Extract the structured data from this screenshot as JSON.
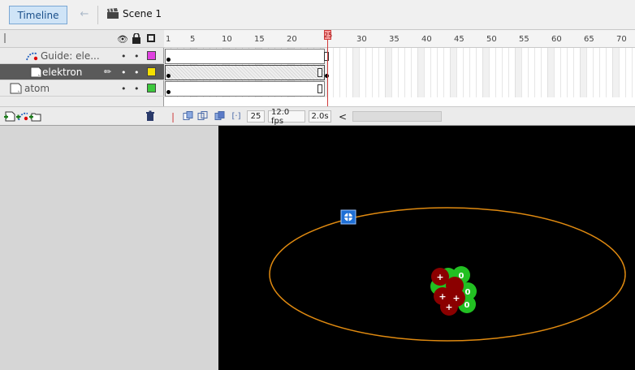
{
  "toolbar": {
    "timeline_label": "Timeline",
    "back_icon": "arrow-left-icon",
    "scene_icon": "clapperboard-icon",
    "scene_label": "Scene 1"
  },
  "layer_panel": {
    "header_icons": [
      "eye-icon",
      "lock-icon",
      "outline-icon"
    ],
    "layers": [
      {
        "name": "Guide: ele...",
        "type": "motion-guide",
        "color": "#e040e0",
        "selected": false
      },
      {
        "name": "elektron",
        "type": "guided-layer",
        "color": "#f5e000",
        "selected": true
      },
      {
        "name": "atom",
        "type": "layer",
        "color": "#3cc83c",
        "selected": false
      }
    ],
    "footer_icons": [
      "insert-layer-icon",
      "add-motion-guide-icon",
      "insert-folder-icon",
      "delete-layer-icon"
    ]
  },
  "frames": {
    "ruler_labels": [
      "1",
      "5",
      "10",
      "15",
      "20",
      "25",
      "30",
      "35",
      "40",
      "45",
      "50",
      "55",
      "60",
      "65",
      "70"
    ],
    "current_frame_marker": "25"
  },
  "timeline_status": {
    "current_frame": "25",
    "frame_rate": "12.0 fps",
    "elapsed_time": "2.0s",
    "scroll_left": "<"
  },
  "stage": {
    "background": "#000000",
    "orbit_color": "#e08a10",
    "proton_color": "#8b0000",
    "neutron_color": "#22c022",
    "proton_label": "+",
    "neutron_label": "0",
    "electron_handle_icon": "transform-point-icon"
  }
}
